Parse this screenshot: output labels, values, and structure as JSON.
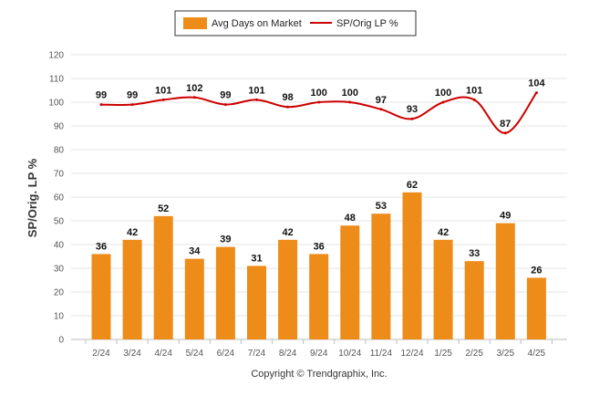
{
  "chart_data": {
    "type": "bar",
    "categories": [
      "2/24",
      "3/24",
      "4/24",
      "5/24",
      "6/24",
      "7/24",
      "8/24",
      "9/24",
      "10/24",
      "11/24",
      "12/24",
      "1/25",
      "2/25",
      "3/25",
      "4/25"
    ],
    "series": [
      {
        "name": "Avg Days on Market",
        "type": "bar",
        "color": "#EE8C1A",
        "values": [
          36,
          42,
          52,
          34,
          39,
          31,
          42,
          36,
          48,
          53,
          62,
          42,
          33,
          49,
          26
        ]
      },
      {
        "name": "SP/Orig LP %",
        "type": "line",
        "color": "#CC0000",
        "values": [
          99,
          99,
          101,
          102,
          99,
          101,
          98,
          100,
          100,
          97,
          93,
          100,
          101,
          87,
          104
        ]
      }
    ],
    "title": "",
    "xlabel": "",
    "ylabel": "SP/Orig. LP %",
    "ylim": [
      0,
      120
    ],
    "yticks": [
      0,
      10,
      20,
      30,
      40,
      50,
      60,
      70,
      80,
      90,
      100,
      110,
      120
    ],
    "grid": true,
    "legend_position": "top-center"
  },
  "footer": {
    "copyright": "Copyright © Trendgraphix, Inc."
  }
}
